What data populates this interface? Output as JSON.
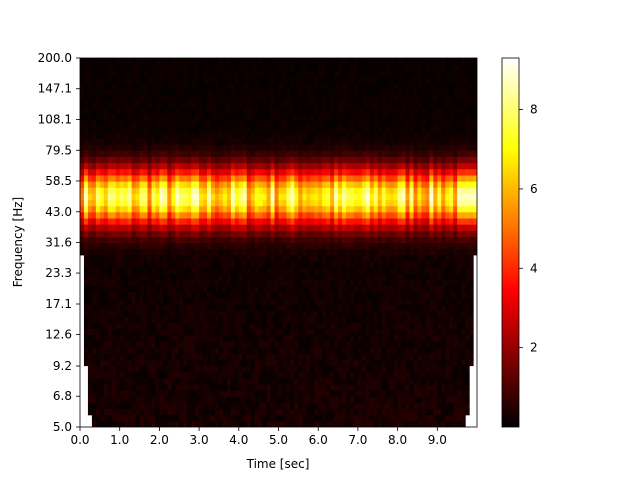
{
  "chart_data": {
    "type": "heatmap",
    "title": "",
    "xlabel": "Time [sec]",
    "ylabel": "Frequency [Hz]",
    "xlim": [
      0,
      10
    ],
    "ylim": [
      5.0,
      200.0
    ],
    "y_scale": "log",
    "x_ticks": [
      "0.0",
      "1.0",
      "2.0",
      "3.0",
      "4.0",
      "5.0",
      "6.0",
      "7.0",
      "8.0",
      "9.0"
    ],
    "y_ticks": [
      "5.0",
      "6.8",
      "9.2",
      "12.6",
      "17.1",
      "23.3",
      "31.6",
      "43.0",
      "58.5",
      "79.5",
      "108.1",
      "147.1",
      "200.0"
    ],
    "colormap": "hot",
    "colorbar": {
      "range": [
        0,
        9.3
      ],
      "ticks": [
        "2",
        "4",
        "6",
        "8"
      ]
    },
    "band": {
      "center_hz": 50,
      "low_hz": 38,
      "high_hz": 70,
      "peak_value": 9
    },
    "background_level": 0.3,
    "cone_of_influence": true,
    "grid": false
  }
}
